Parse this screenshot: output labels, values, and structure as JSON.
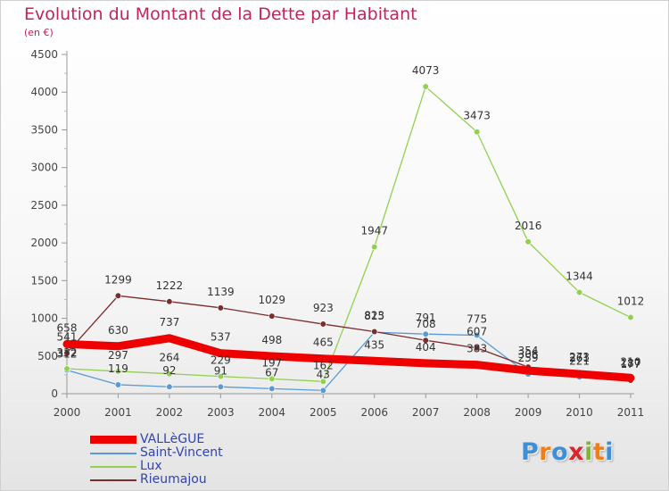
{
  "title": "Evolution du Montant de la Dette par Habitant",
  "subtitle": "(en €)",
  "logo": {
    "letters": [
      "P",
      "r",
      "o",
      "x",
      "i",
      "t",
      "i"
    ],
    "colors": [
      "#3f8fd8",
      "#f07e18",
      "#3f8fd8",
      "#d8262a",
      "#7ab830",
      "#f07e18",
      "#3f8fd8"
    ]
  },
  "chart_data": {
    "type": "line",
    "x": [
      "2000",
      "2001",
      "2002",
      "2003",
      "2004",
      "2005",
      "2006",
      "2007",
      "2008",
      "2009",
      "2010",
      "2011"
    ],
    "ylim": [
      0,
      4500
    ],
    "yticks": [
      0,
      500,
      1000,
      1500,
      2000,
      2500,
      3000,
      3500,
      4000,
      4500
    ],
    "grid": false,
    "legend_position": "bottom-left",
    "series": [
      {
        "name": "VALLèGUE",
        "color": "#ee0000",
        "values": [
          658,
          630,
          737,
          537,
          498,
          465,
          435,
          404,
          383,
          306,
          261,
          210
        ]
      },
      {
        "name": "Saint-Vincent",
        "color": "#5b9bd5",
        "values": [
          312,
          119,
          92,
          91,
          67,
          43,
          815,
          791,
          775,
          259,
          221,
          187
        ]
      },
      {
        "name": "Lux",
        "color": "#92d050",
        "values": [
          332,
          297,
          264,
          229,
          197,
          162,
          1947,
          4073,
          3473,
          2016,
          1344,
          1012
        ]
      },
      {
        "name": "Rieumajou",
        "color": "#7b2c2c",
        "values": [
          541,
          1299,
          1222,
          1139,
          1029,
          923,
          823,
          708,
          607,
          354,
          273,
          177
        ]
      }
    ],
    "data_labels": [
      [
        658,
        630,
        737,
        537,
        498,
        465,
        435,
        404,
        383,
        306,
        261,
        210
      ],
      [
        312,
        119,
        92,
        91,
        67,
        43,
        815,
        791,
        775,
        259,
        221,
        187
      ],
      [
        332,
        297,
        264,
        229,
        197,
        162,
        1947,
        4073,
        3473,
        2016,
        1344,
        1012
      ],
      [
        541,
        1299,
        1222,
        1139,
        1029,
        923,
        823,
        708,
        607,
        354,
        273,
        177
      ]
    ]
  }
}
